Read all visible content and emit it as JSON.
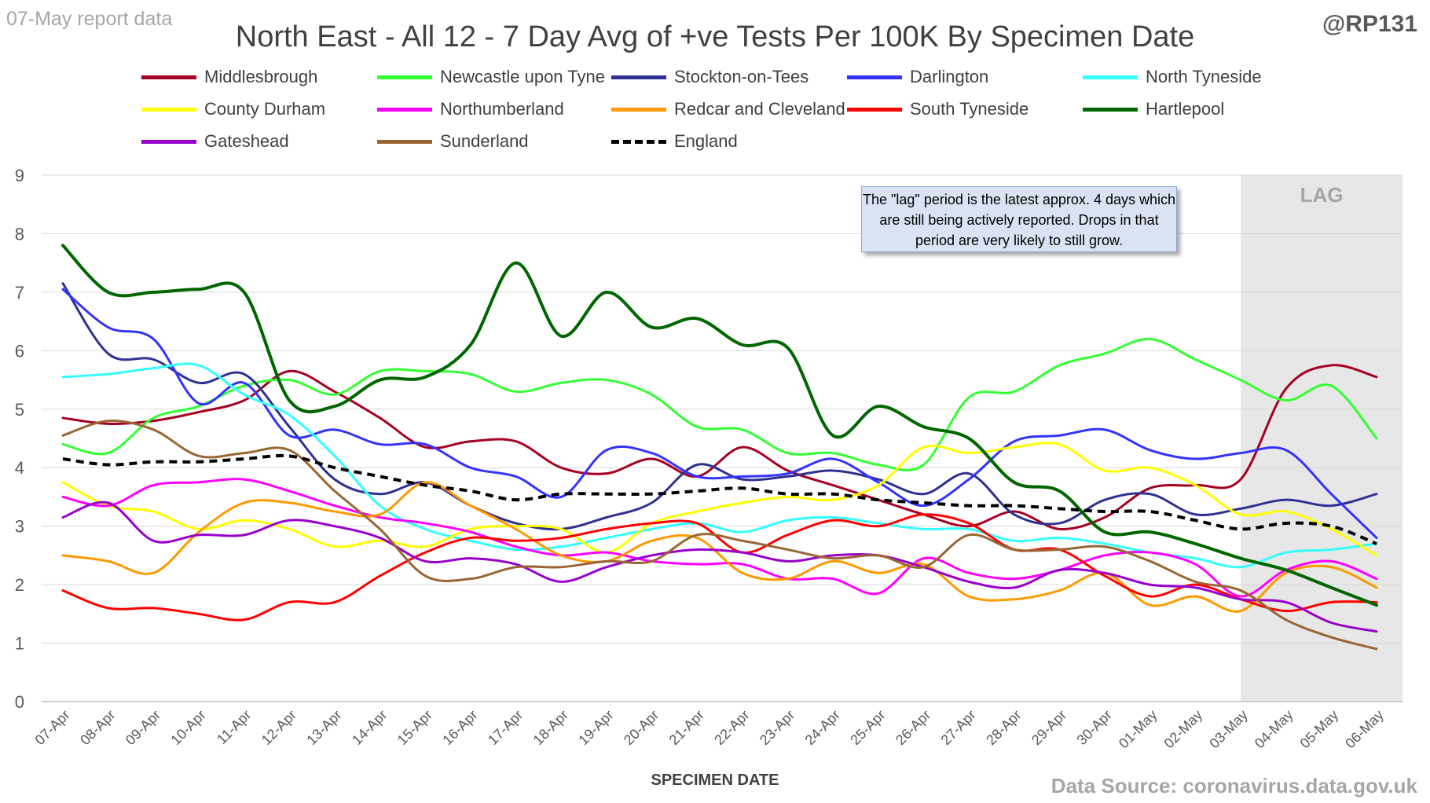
{
  "header": {
    "report_date": "07-May report data",
    "handle": "@RP131",
    "source": "Data Source: coronavirus.data.gov.uk"
  },
  "annotation": {
    "text": "The \"lag\" period is the latest approx. 4 days which are still being actively reported. Drops in that period are very likely to still grow."
  },
  "chart_data": {
    "type": "line",
    "title": "North East - All 12 - 7 Day Avg of +ve Tests Per 100K By Specimen Date",
    "xlabel": "SPECIMEN DATE",
    "ylabel": "",
    "ylim": [
      0,
      9
    ],
    "yticks": [
      0,
      1,
      2,
      3,
      4,
      5,
      6,
      7,
      8,
      9
    ],
    "grid": true,
    "legend": "top",
    "lag_label": "LAG",
    "lag_start": "03-May",
    "lag_end": "06-May",
    "x": [
      "07-Apr",
      "08-Apr",
      "09-Apr",
      "10-Apr",
      "11-Apr",
      "12-Apr",
      "13-Apr",
      "14-Apr",
      "15-Apr",
      "16-Apr",
      "17-Apr",
      "18-Apr",
      "19-Apr",
      "20-Apr",
      "21-Apr",
      "22-Apr",
      "23-Apr",
      "24-Apr",
      "25-Apr",
      "26-Apr",
      "27-Apr",
      "28-Apr",
      "29-Apr",
      "30-Apr",
      "01-May",
      "02-May",
      "03-May",
      "04-May",
      "05-May",
      "06-May"
    ],
    "series": [
      {
        "name": "Middlesbrough",
        "color": "#a50021",
        "width": 3,
        "dash": false,
        "values": [
          4.85,
          4.75,
          4.8,
          4.95,
          5.15,
          5.65,
          5.3,
          4.85,
          4.35,
          4.45,
          4.45,
          4.0,
          3.9,
          4.15,
          3.85,
          4.35,
          3.95,
          3.7,
          3.45,
          3.2,
          3.0,
          3.25,
          2.95,
          3.15,
          3.65,
          3.7,
          3.8,
          5.35,
          5.75,
          5.55
        ]
      },
      {
        "name": "Newcastle upon Tyne",
        "color": "#33ff33",
        "width": 3,
        "dash": false,
        "values": [
          4.4,
          4.25,
          4.85,
          5.05,
          5.4,
          5.5,
          5.25,
          5.65,
          5.65,
          5.6,
          5.3,
          5.45,
          5.5,
          5.25,
          4.7,
          4.65,
          4.25,
          4.25,
          4.05,
          4.05,
          5.2,
          5.3,
          5.75,
          5.95,
          6.2,
          5.85,
          5.5,
          5.15,
          5.4,
          4.5
        ]
      },
      {
        "name": "Stockton-on-Tees",
        "color": "#2e3192",
        "width": 3,
        "dash": false,
        "values": [
          7.15,
          5.95,
          5.85,
          5.45,
          5.6,
          4.7,
          3.8,
          3.55,
          3.75,
          3.35,
          3.05,
          2.95,
          3.15,
          3.4,
          4.05,
          3.8,
          3.85,
          3.95,
          3.8,
          3.55,
          3.9,
          3.2,
          3.05,
          3.45,
          3.55,
          3.2,
          3.3,
          3.45,
          3.35,
          3.55
        ]
      },
      {
        "name": "Darlington",
        "color": "#3333ff",
        "width": 3,
        "dash": false,
        "values": [
          7.05,
          6.4,
          6.2,
          5.1,
          5.45,
          4.55,
          4.65,
          4.4,
          4.4,
          4.0,
          3.85,
          3.5,
          4.3,
          4.25,
          3.85,
          3.85,
          3.9,
          4.15,
          3.75,
          3.35,
          3.8,
          4.45,
          4.55,
          4.65,
          4.3,
          4.15,
          4.25,
          4.3,
          3.55,
          2.8
        ]
      },
      {
        "name": "North Tyneside",
        "color": "#33ffff",
        "width": 3,
        "dash": false,
        "values": [
          5.55,
          5.6,
          5.7,
          5.75,
          5.25,
          4.9,
          4.2,
          3.35,
          2.95,
          2.75,
          2.6,
          2.65,
          2.8,
          2.95,
          3.05,
          2.9,
          3.1,
          3.15,
          3.05,
          2.95,
          2.95,
          2.75,
          2.8,
          2.7,
          2.55,
          2.45,
          2.3,
          2.55,
          2.6,
          2.7
        ]
      },
      {
        "name": "County Durham",
        "color": "#ffff00",
        "width": 3,
        "dash": false,
        "values": [
          3.75,
          3.35,
          3.25,
          2.95,
          3.1,
          2.95,
          2.65,
          2.75,
          2.65,
          2.95,
          3.0,
          2.95,
          2.55,
          3.05,
          3.25,
          3.4,
          3.5,
          3.45,
          3.7,
          4.35,
          4.25,
          4.35,
          4.4,
          3.95,
          4.0,
          3.7,
          3.2,
          3.25,
          2.95,
          2.5
        ]
      },
      {
        "name": "Northumberland",
        "color": "#ff00ff",
        "width": 3,
        "dash": false,
        "values": [
          3.5,
          3.35,
          3.7,
          3.75,
          3.8,
          3.6,
          3.35,
          3.15,
          3.05,
          2.9,
          2.65,
          2.5,
          2.55,
          2.4,
          2.35,
          2.35,
          2.1,
          2.1,
          1.85,
          2.45,
          2.2,
          2.1,
          2.25,
          2.5,
          2.55,
          2.35,
          1.8,
          2.25,
          2.4,
          2.1
        ]
      },
      {
        "name": "Redcar and Cleveland",
        "color": "#ff9900",
        "width": 3,
        "dash": false,
        "values": [
          2.5,
          2.4,
          2.2,
          2.9,
          3.4,
          3.4,
          3.25,
          3.2,
          3.75,
          3.35,
          2.95,
          2.5,
          2.4,
          2.75,
          2.8,
          2.2,
          2.1,
          2.4,
          2.2,
          2.35,
          1.8,
          1.75,
          1.9,
          2.2,
          1.65,
          1.8,
          1.55,
          2.2,
          2.3,
          1.95
        ]
      },
      {
        "name": "South Tyneside",
        "color": "#ff0000",
        "width": 3,
        "dash": false,
        "values": [
          1.9,
          1.6,
          1.6,
          1.5,
          1.4,
          1.7,
          1.7,
          2.15,
          2.55,
          2.8,
          2.75,
          2.8,
          2.95,
          3.05,
          3.05,
          2.55,
          2.85,
          3.1,
          3.0,
          3.2,
          3.05,
          2.6,
          2.6,
          2.15,
          1.8,
          2.0,
          1.75,
          1.55,
          1.7,
          1.7
        ]
      },
      {
        "name": "Hartlepool",
        "color": "#006600",
        "width": 4,
        "dash": false,
        "values": [
          7.8,
          7.0,
          7.0,
          7.05,
          7.0,
          5.15,
          5.05,
          5.5,
          5.55,
          6.1,
          7.5,
          6.25,
          7.0,
          6.4,
          6.55,
          6.1,
          6.05,
          4.55,
          5.05,
          4.7,
          4.5,
          3.75,
          3.6,
          2.9,
          2.9,
          2.7,
          2.45,
          2.25,
          1.95,
          1.65
        ]
      },
      {
        "name": "Gateshead",
        "color": "#9900cc",
        "width": 3,
        "dash": false,
        "values": [
          3.15,
          3.4,
          2.75,
          2.85,
          2.85,
          3.1,
          3.0,
          2.8,
          2.4,
          2.45,
          2.35,
          2.05,
          2.3,
          2.5,
          2.6,
          2.55,
          2.4,
          2.5,
          2.5,
          2.3,
          2.05,
          1.95,
          2.25,
          2.2,
          2.0,
          1.95,
          1.75,
          1.7,
          1.35,
          1.2
        ]
      },
      {
        "name": "Sunderland",
        "color": "#996633",
        "width": 3,
        "dash": false,
        "values": [
          4.55,
          4.8,
          4.65,
          4.2,
          4.25,
          4.3,
          3.6,
          2.95,
          2.15,
          2.1,
          2.3,
          2.3,
          2.4,
          2.4,
          2.85,
          2.75,
          2.6,
          2.45,
          2.5,
          2.3,
          2.85,
          2.6,
          2.6,
          2.65,
          2.4,
          2.05,
          1.9,
          1.4,
          1.1,
          0.9
        ]
      },
      {
        "name": "England",
        "color": "#000000",
        "width": 4,
        "dash": true,
        "values": [
          4.15,
          4.05,
          4.1,
          4.1,
          4.15,
          4.2,
          4.0,
          3.85,
          3.7,
          3.6,
          3.45,
          3.55,
          3.55,
          3.55,
          3.6,
          3.65,
          3.55,
          3.55,
          3.45,
          3.4,
          3.35,
          3.35,
          3.3,
          3.25,
          3.25,
          3.1,
          2.95,
          3.05,
          3.0,
          2.7
        ]
      }
    ]
  }
}
